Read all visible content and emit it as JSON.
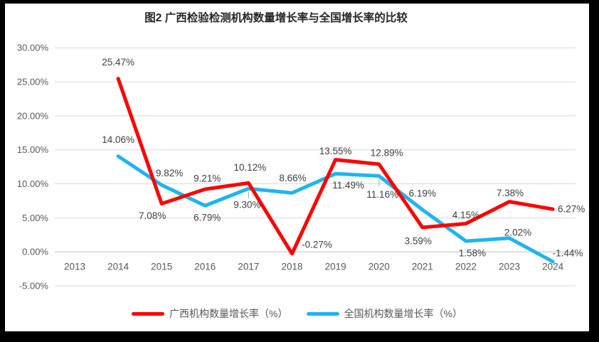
{
  "title": "图2 广西检验检测机构数量增长率与全国增长率的比较",
  "colors": {
    "guangxi_line": "#FF0000",
    "national_line": "#1FB4F0",
    "gridline": "#D9D9D9",
    "axis_line": "#BFBFBF",
    "axis_text": "#595959",
    "data_label_text": "#404040",
    "leader_tick": "#A6A6A6",
    "border": "#000000",
    "background": "#FFFFFF"
  },
  "chart_data": {
    "type": "line",
    "title": "图2 广西检验检测机构数量增长率与全国增长率的比较",
    "xlabel": "",
    "ylabel": "",
    "grid": true,
    "legend_position": "bottom",
    "categories": [
      "2013",
      "2014",
      "2015",
      "2016",
      "2017",
      "2018",
      "2019",
      "2020",
      "2021",
      "2022",
      "2023",
      "2024"
    ],
    "yaxis": {
      "min": -5,
      "max": 30,
      "ticks": [
        {
          "v": 30,
          "label": "30.00%"
        },
        {
          "v": 25,
          "label": "25.00%"
        },
        {
          "v": 20,
          "label": "20.00%"
        },
        {
          "v": 15,
          "label": "15.00%"
        },
        {
          "v": 10,
          "label": "10.00%"
        },
        {
          "v": 5,
          "label": "5.00%"
        },
        {
          "v": 0,
          "label": "0.00%"
        },
        {
          "v": -5,
          "label": "-5.00%"
        }
      ]
    },
    "series": [
      {
        "name": "广西机构数量增长率（%）",
        "color": "#FF0000",
        "points": [
          {
            "year": "2014",
            "v": 25.47,
            "label": "25.47%",
            "dx": 0,
            "dy": -23
          },
          {
            "year": "2015",
            "v": 7.08,
            "label": "7.08%",
            "dx": -13,
            "dy": 17
          },
          {
            "year": "2016",
            "v": 9.21,
            "label": "9.21%",
            "dx": 3,
            "dy": -15
          },
          {
            "year": "2017",
            "v": 10.12,
            "label": "10.12%",
            "dx": 2,
            "dy": -22
          },
          {
            "year": "2018",
            "v": -0.27,
            "label": "-0.27%",
            "dx": 35,
            "dy": -13
          },
          {
            "year": "2019",
            "v": 13.55,
            "label": "13.55%",
            "dx": 0,
            "dy": -12
          },
          {
            "year": "2020",
            "v": 12.89,
            "label": "12.89%",
            "dx": 11,
            "dy": -16
          },
          {
            "year": "2021",
            "v": 3.59,
            "label": "3.59%",
            "dx": -6,
            "dy": 19
          },
          {
            "year": "2022",
            "v": 4.15,
            "label": "4.15%",
            "dx": 0,
            "dy": -12
          },
          {
            "year": "2023",
            "v": 7.38,
            "label": "7.38%",
            "dx": 1,
            "dy": -12
          },
          {
            "year": "2024",
            "v": 6.27,
            "label": "6.27%",
            "dx": 26,
            "dy": 0
          }
        ]
      },
      {
        "name": "全国机构数量增长率（%）",
        "color": "#1FB4F0",
        "points": [
          {
            "year": "2014",
            "v": 14.06,
            "label": "14.06%",
            "dx": 0,
            "dy": -23
          },
          {
            "year": "2015",
            "v": 9.82,
            "label": "9.82%",
            "dx": 11,
            "dy": -17
          },
          {
            "year": "2016",
            "v": 6.79,
            "label": "6.79%",
            "dx": 3,
            "dy": 17
          },
          {
            "year": "2017",
            "v": 9.3,
            "label": "9.30%",
            "dx": -2,
            "dy": 23,
            "leader": true
          },
          {
            "year": "2018",
            "v": 8.66,
            "label": "8.66%",
            "dx": 1,
            "dy": -21
          },
          {
            "year": "2019",
            "v": 11.49,
            "label": "11.49%",
            "dx": 18,
            "dy": 16
          },
          {
            "year": "2020",
            "v": 11.16,
            "label": "11.16%",
            "dx": 5,
            "dy": 26,
            "leader": true
          },
          {
            "year": "2021",
            "v": 6.19,
            "label": "6.19%",
            "dx": 0,
            "dy": -23
          },
          {
            "year": "2022",
            "v": 1.58,
            "label": "1.58%",
            "dx": 9,
            "dy": 17
          },
          {
            "year": "2023",
            "v": 2.02,
            "label": "2.02%",
            "dx": 12,
            "dy": -8
          },
          {
            "year": "2024",
            "v": -1.44,
            "label": "-1.44%",
            "dx": 21,
            "dy": -12
          }
        ]
      }
    ]
  }
}
